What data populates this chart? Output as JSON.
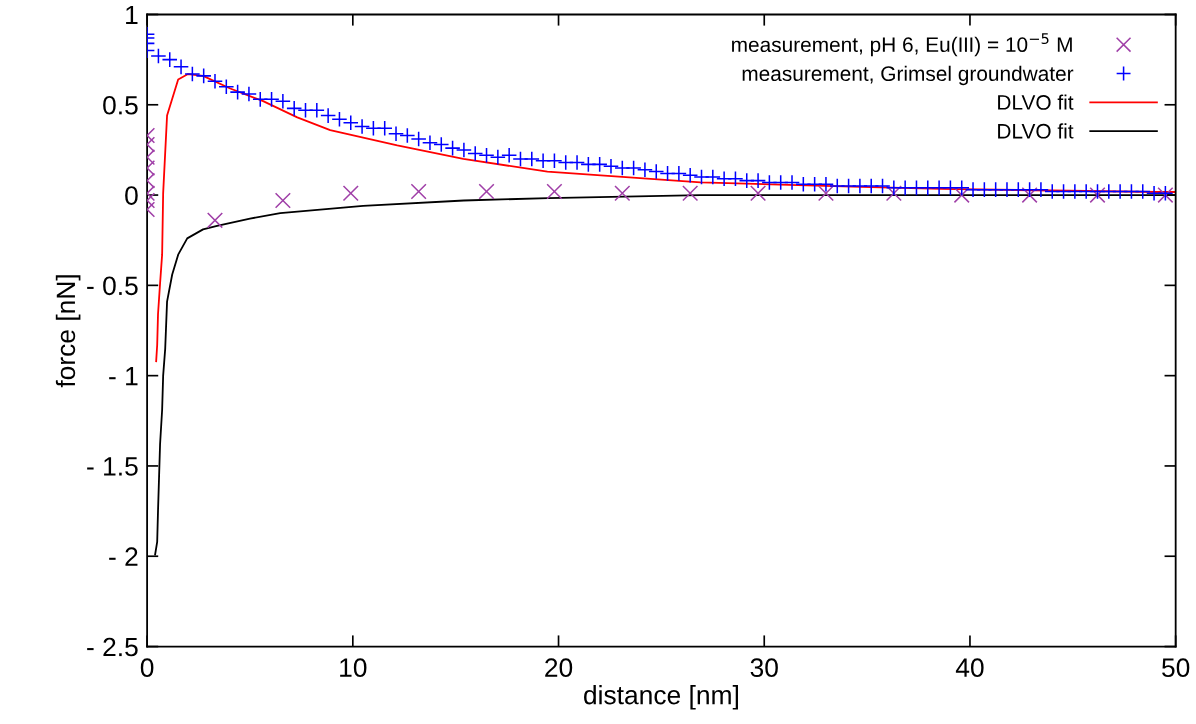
{
  "chart_data": {
    "type": "scatter",
    "xlabel": "distance [nm]",
    "ylabel": "force [nN]",
    "xlim": [
      0,
      50
    ],
    "xticks": [
      0,
      10,
      20,
      30,
      40,
      50
    ],
    "ylim": [
      -2.5,
      1
    ],
    "yticks": [
      {
        "value": -2.5,
        "label": "- 2.5"
      },
      {
        "value": -2,
        "label": "- 2"
      },
      {
        "value": -1.5,
        "label": "- 1.5"
      },
      {
        "value": -1,
        "label": "- 1"
      },
      {
        "value": -0.5,
        "label": "- 0.5"
      },
      0,
      0.5,
      1
    ],
    "grid": false,
    "legend": "top right",
    "series": [
      {
        "name": "measurement, pH 6, Eu(III) = 10$^{−5}$ M",
        "marker": "cross",
        "color": "#a040a8",
        "x": [
          0,
          0,
          0,
          0,
          0,
          0,
          0,
          0,
          3.3,
          6.6,
          9.9,
          13.2,
          16.5,
          19.8,
          23.1,
          26.4,
          29.7,
          33,
          36.3,
          39.6,
          42.9,
          46.2,
          49.5
        ],
        "values": [
          0.33,
          0.28,
          0.21,
          0.15,
          0.08,
          0.01,
          -0.03,
          -0.08,
          -0.14,
          -0.03,
          0.01,
          0.02,
          0.02,
          0.02,
          0.01,
          0.01,
          0.01,
          0.01,
          0.01,
          0,
          0,
          0,
          0
        ]
      },
      {
        "name": "measurement, Grimsel groundwater",
        "marker": "plus",
        "color": "#0000ff",
        "x": [
          0,
          0,
          0,
          0,
          0.55,
          1.1,
          1.65,
          2.2,
          2.75,
          3.3,
          3.85,
          4.4,
          4.95,
          5.5,
          6.05,
          6.6,
          7.15,
          7.7,
          8.25,
          8.8,
          9.35,
          9.9,
          10.45,
          11,
          11.55,
          12.1,
          12.65,
          13.2,
          13.75,
          14.3,
          14.85,
          15.4,
          15.95,
          16.5,
          17.05,
          17.6,
          18.15,
          18.7,
          19.25,
          19.8,
          20.35,
          20.9,
          21.45,
          22,
          22.55,
          23.1,
          23.65,
          24.2,
          24.75,
          25.3,
          25.85,
          26.4,
          26.95,
          27.5,
          28.05,
          28.6,
          29.15,
          29.7,
          30.25,
          30.8,
          31.35,
          31.9,
          32.45,
          33,
          33.55,
          34.1,
          34.65,
          35.2,
          35.75,
          36.3,
          36.85,
          37.4,
          37.95,
          38.5,
          39.05,
          39.6,
          40.15,
          40.7,
          41.25,
          41.8,
          42.35,
          42.9,
          43.45,
          44,
          44.55,
          45.1,
          45.65,
          46.2,
          46.75,
          47.3,
          47.85,
          48.4,
          48.95,
          49.5
        ],
        "values": [
          0.89,
          0.87,
          0.84,
          0.8,
          0.77,
          0.75,
          0.71,
          0.67,
          0.66,
          0.63,
          0.6,
          0.57,
          0.56,
          0.53,
          0.53,
          0.52,
          0.48,
          0.47,
          0.47,
          0.44,
          0.42,
          0.4,
          0.38,
          0.37,
          0.37,
          0.34,
          0.33,
          0.31,
          0.29,
          0.28,
          0.26,
          0.25,
          0.23,
          0.22,
          0.21,
          0.22,
          0.2,
          0.2,
          0.19,
          0.19,
          0.18,
          0.18,
          0.17,
          0.17,
          0.16,
          0.15,
          0.15,
          0.14,
          0.13,
          0.12,
          0.12,
          0.11,
          0.1,
          0.1,
          0.09,
          0.09,
          0.08,
          0.08,
          0.07,
          0.07,
          0.07,
          0.06,
          0.06,
          0.06,
          0.05,
          0.05,
          0.05,
          0.05,
          0.05,
          0.04,
          0.04,
          0.04,
          0.04,
          0.04,
          0.04,
          0.04,
          0.03,
          0.03,
          0.03,
          0.03,
          0.03,
          0.03,
          0.03,
          0.02,
          0.02,
          0.02,
          0.02,
          0.02,
          0.02,
          0.02,
          0.02,
          0.02,
          0.01,
          0.01
        ]
      },
      {
        "name": "DLVO fit",
        "type": "line",
        "color": "#ff0000",
        "x": [
          0.44,
          0.49,
          0.53,
          0.63,
          0.73,
          0.78,
          0.97,
          1.51,
          1.99,
          2.72,
          4.04,
          5.64,
          7.3,
          8.9,
          12.16,
          15.37,
          19.46,
          26.9,
          34.7,
          38.6,
          49.1,
          50
        ],
        "values": [
          -0.92,
          -0.83,
          -0.66,
          -0.49,
          -0.33,
          0.01,
          0.44,
          0.64,
          0.67,
          0.66,
          0.59,
          0.52,
          0.43,
          0.36,
          0.275,
          0.2,
          0.13,
          0.07,
          0.045,
          0.034,
          0.017,
          0.017
        ]
      },
      {
        "name": "DLVO fit",
        "type": "line",
        "color": "#000000",
        "x": [
          0.39,
          0.49,
          0.53,
          0.63,
          0.73,
          0.78,
          0.88,
          0.97,
          1.22,
          1.51,
          1.95,
          2.72,
          3.4,
          5.0,
          6.47,
          10.5,
          15.4,
          19.5,
          26.9,
          30,
          50
        ],
        "values": [
          -1.99,
          -1.92,
          -1.75,
          -1.38,
          -1.19,
          -1.0,
          -0.85,
          -0.59,
          -0.44,
          -0.33,
          -0.24,
          -0.19,
          -0.17,
          -0.13,
          -0.1,
          -0.06,
          -0.03,
          -0.017,
          0,
          0,
          0
        ]
      }
    ]
  }
}
